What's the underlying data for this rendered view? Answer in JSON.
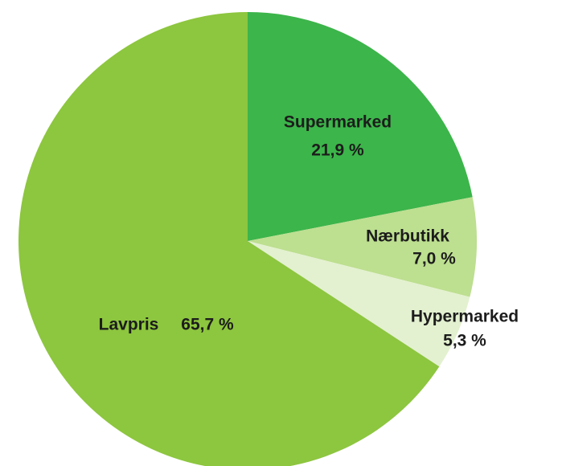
{
  "chart_data": {
    "type": "pie",
    "categories": [
      "Supermarked",
      "Nærbutikk",
      "Hypermarked",
      "Lavpris"
    ],
    "values": [
      21.9,
      7.0,
      5.3,
      65.7
    ],
    "value_labels": [
      "21,9 %",
      "7,0 %",
      "5,3 %",
      "65,7 %"
    ],
    "colors": [
      "#3cb54a",
      "#bddf90",
      "#e3f1d0",
      "#8dc63f"
    ]
  }
}
